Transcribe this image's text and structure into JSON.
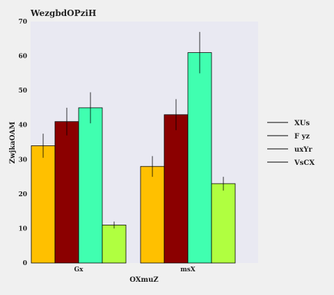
{
  "chart_data": {
    "type": "bar",
    "title": "WezgbdOPziH",
    "xlabel": "OXmuZ",
    "ylabel": "ZwjkaOAM",
    "categories": [
      "Gx",
      "msX"
    ],
    "ylim": [
      0,
      70
    ],
    "yticks": [
      0,
      10,
      20,
      30,
      40,
      50,
      60,
      70
    ],
    "grid": false,
    "legend_position": "right",
    "series": [
      {
        "name": "XUs",
        "color": "#ffc000",
        "values": [
          34,
          28
        ],
        "errors": [
          3.5,
          3
        ]
      },
      {
        "name": "F yz",
        "color": "#8b0000",
        "values": [
          41,
          43
        ],
        "errors": [
          4,
          4.5
        ]
      },
      {
        "name": "uxYr",
        "color": "#40ffb0",
        "values": [
          45,
          61
        ],
        "errors": [
          4.5,
          6
        ]
      },
      {
        "name": "VsCX",
        "color": "#b0ff40",
        "values": [
          11,
          23
        ],
        "errors": [
          1,
          2
        ]
      }
    ]
  }
}
